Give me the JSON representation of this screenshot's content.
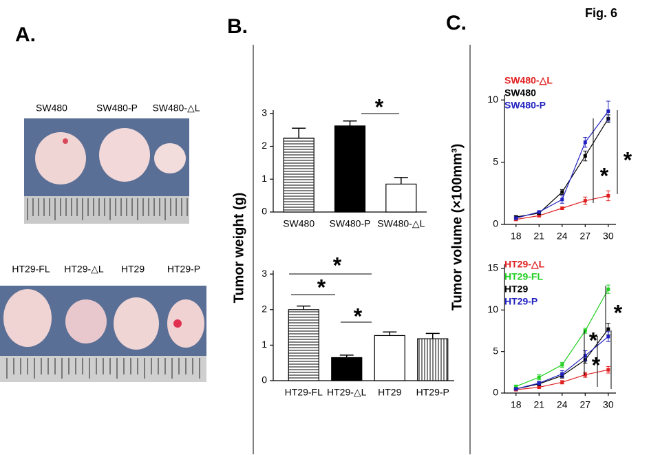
{
  "figure_label": "Fig. 6",
  "panels": {
    "a": "A.",
    "b": "B.",
    "c": "C."
  },
  "photos": {
    "top_labels": [
      "SW480",
      "SW480-P",
      "SW480-△L"
    ],
    "bottom_labels": [
      "HT29-FL",
      "HT29-△L",
      "HT29",
      "HT29-P"
    ]
  },
  "y_titles": {
    "weight": "Tumor weight (g)",
    "volume": "Tumor volume (×100mm³)"
  },
  "chart_data": [
    {
      "type": "bar",
      "categories": [
        "SW480",
        "SW480-P",
        "SW480-△L"
      ],
      "values": [
        2.25,
        2.62,
        0.85
      ],
      "errors": [
        0.3,
        0.15,
        0.2
      ],
      "patterns": [
        "horizontal-stripes",
        "solid-black",
        "white"
      ],
      "ylim": [
        0,
        3.1
      ],
      "yticks": [
        0,
        1,
        2,
        3
      ],
      "annotations": [
        "*"
      ]
    },
    {
      "type": "bar",
      "categories": [
        "HT29-FL",
        "HT29-△L",
        "HT29",
        "HT29-P"
      ],
      "values": [
        2.0,
        0.65,
        1.27,
        1.18
      ],
      "errors": [
        0.1,
        0.07,
        0.1,
        0.15
      ],
      "patterns": [
        "horizontal-stripes",
        "solid-black",
        "white",
        "vertical-stripes"
      ],
      "ylim": [
        0,
        3.1
      ],
      "yticks": [
        0,
        1,
        2,
        3
      ],
      "annotations": [
        "*",
        "*",
        "*"
      ]
    },
    {
      "type": "line",
      "x": [
        18,
        21,
        24,
        27,
        30
      ],
      "xlim": [
        16.5,
        31
      ],
      "xticks": [
        18,
        21,
        24,
        27,
        30
      ],
      "ylim": [
        0,
        10.4
      ],
      "yticks": [
        0,
        5,
        10
      ],
      "series": [
        {
          "name": "SW480-△L",
          "color": "#e02020",
          "values": [
            0.4,
            0.7,
            1.3,
            1.9,
            2.3
          ],
          "errors": [
            0.1,
            0.1,
            0.1,
            0.3,
            0.4
          ]
        },
        {
          "name": "SW480",
          "color": "#000000",
          "values": [
            0.6,
            0.9,
            2.6,
            5.5,
            8.5
          ],
          "errors": [
            0.1,
            0.1,
            0.2,
            0.4,
            0.3
          ]
        },
        {
          "name": "SW480-P",
          "color": "#2020c0",
          "values": [
            0.5,
            1.0,
            2.0,
            6.6,
            9.1
          ],
          "errors": [
            0.1,
            0.1,
            0.3,
            0.4,
            0.8
          ]
        }
      ],
      "annotations": [
        "*",
        "*"
      ]
    },
    {
      "type": "line",
      "x": [
        18,
        21,
        24,
        27,
        30
      ],
      "xlim": [
        16.5,
        31
      ],
      "xticks": [
        18,
        21,
        24,
        27,
        30
      ],
      "ylim": [
        0,
        15.5
      ],
      "yticks": [
        0,
        5,
        10,
        15
      ],
      "series": [
        {
          "name": "HT29-△L",
          "color": "#e02020",
          "values": [
            0.4,
            0.7,
            1.3,
            2.2,
            2.8
          ],
          "errors": [
            0.1,
            0.1,
            0.2,
            0.3,
            0.4
          ]
        },
        {
          "name": "HT29-FL",
          "color": "#20d020",
          "values": [
            0.8,
            1.9,
            3.4,
            7.5,
            12.5
          ],
          "errors": [
            0.1,
            0.3,
            0.3,
            0.3,
            0.5
          ]
        },
        {
          "name": "HT29",
          "color": "#000000",
          "values": [
            0.5,
            1.1,
            2.1,
            4.0,
            7.7
          ],
          "errors": [
            0.1,
            0.2,
            0.3,
            0.4,
            0.7
          ]
        },
        {
          "name": "HT29-P",
          "color": "#2020c0",
          "values": [
            0.5,
            1.2,
            2.3,
            4.5,
            6.8
          ],
          "errors": [
            0.1,
            0.2,
            0.4,
            0.6,
            0.6
          ]
        }
      ],
      "annotations": [
        "*",
        "*",
        "*"
      ]
    }
  ]
}
